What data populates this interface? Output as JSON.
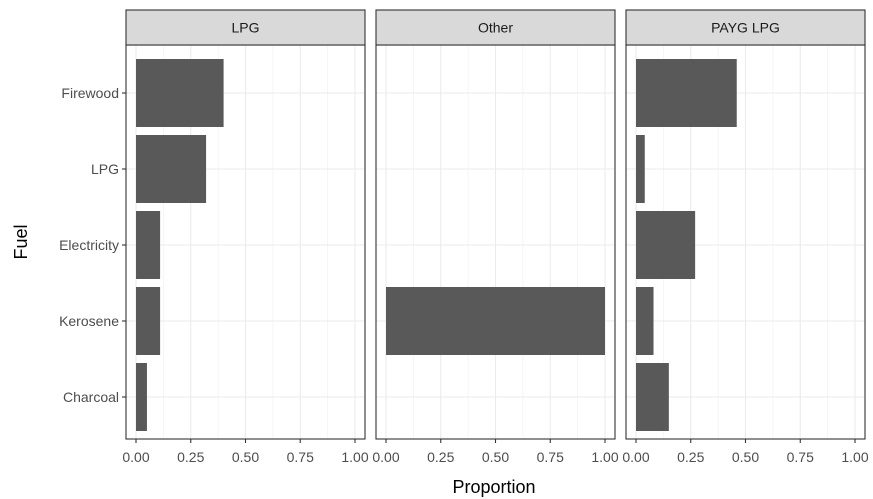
{
  "chart_data": {
    "type": "bar",
    "orientation": "horizontal",
    "xlabel": "Proportion",
    "ylabel": "Fuel",
    "xlim": [
      0,
      1
    ],
    "x_ticks": [
      "0.00",
      "0.25",
      "0.50",
      "0.75",
      "1.00"
    ],
    "categories": [
      "Firewood",
      "LPG",
      "Electricity",
      "Kerosene",
      "Charcoal"
    ],
    "grid": true,
    "bar_color": "#595959",
    "panels": [
      {
        "name": "LPG",
        "values": [
          0.4,
          0.32,
          0.11,
          0.11,
          0.05
        ]
      },
      {
        "name": "Other",
        "values": [
          0,
          0,
          0,
          1.0,
          0
        ]
      },
      {
        "name": "PAYG LPG",
        "values": [
          0.46,
          0.04,
          0.27,
          0.08,
          0.15
        ]
      }
    ]
  }
}
